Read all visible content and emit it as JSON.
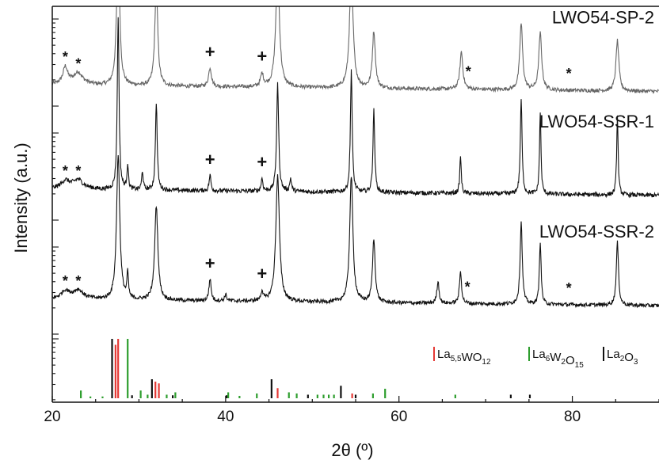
{
  "chart_data": {
    "type": "line",
    "xlabel": "2θ (º)",
    "ylabel": "Intensity (a.u.)",
    "xlim": [
      20,
      90
    ],
    "x_ticks": [
      20,
      40,
      60,
      80
    ],
    "x_tick_labels": [
      "20",
      "40",
      "60",
      "80"
    ],
    "y_tick_labels_shown": false,
    "grid": false,
    "series": [
      {
        "name": "LWO54-SP-2",
        "color": "#666666",
        "baseline": 0.78,
        "noise": 0.012,
        "peaks": [
          {
            "x": 21.5,
            "h": 0.05,
            "w": 0.3
          },
          {
            "x": 23.0,
            "h": 0.03,
            "w": 0.5
          },
          {
            "x": 27.6,
            "h": 0.47,
            "w": 0.2
          },
          {
            "x": 32.0,
            "h": 0.32,
            "w": 0.2
          },
          {
            "x": 38.2,
            "h": 0.06,
            "w": 0.2
          },
          {
            "x": 44.2,
            "h": 0.04,
            "w": 0.2
          },
          {
            "x": 46.0,
            "h": 0.38,
            "w": 0.25
          },
          {
            "x": 54.5,
            "h": 0.36,
            "w": 0.25
          },
          {
            "x": 57.1,
            "h": 0.18,
            "w": 0.2
          },
          {
            "x": 67.2,
            "h": 0.12,
            "w": 0.2
          },
          {
            "x": 74.1,
            "h": 0.21,
            "w": 0.2
          },
          {
            "x": 76.3,
            "h": 0.18,
            "w": 0.2
          },
          {
            "x": 85.2,
            "h": 0.16,
            "w": 0.2
          }
        ],
        "markers": [
          {
            "x": 21.5,
            "label": "*"
          },
          {
            "x": 23.0,
            "label": "*"
          },
          {
            "x": 38.2,
            "label": "+"
          },
          {
            "x": 44.2,
            "label": "+"
          },
          {
            "x": 68.0,
            "label": "*"
          },
          {
            "x": 79.6,
            "label": "*"
          }
        ]
      },
      {
        "name": "LWO54-SSR-1",
        "color": "#111111",
        "baseline": 0.45,
        "noise": 0.014,
        "peaks": [
          {
            "x": 21.5,
            "h": 0.02,
            "w": 0.5
          },
          {
            "x": 23.0,
            "h": 0.02,
            "w": 0.5
          },
          {
            "x": 27.6,
            "h": 0.55,
            "w": 0.12
          },
          {
            "x": 28.7,
            "h": 0.08,
            "w": 0.1
          },
          {
            "x": 30.4,
            "h": 0.06,
            "w": 0.1
          },
          {
            "x": 32.0,
            "h": 0.28,
            "w": 0.12
          },
          {
            "x": 38.2,
            "h": 0.05,
            "w": 0.12
          },
          {
            "x": 44.2,
            "h": 0.04,
            "w": 0.12
          },
          {
            "x": 46.0,
            "h": 0.34,
            "w": 0.14
          },
          {
            "x": 47.5,
            "h": 0.04,
            "w": 0.12
          },
          {
            "x": 54.5,
            "h": 0.39,
            "w": 0.12
          },
          {
            "x": 57.1,
            "h": 0.26,
            "w": 0.12
          },
          {
            "x": 67.1,
            "h": 0.12,
            "w": 0.1
          },
          {
            "x": 74.1,
            "h": 0.3,
            "w": 0.12
          },
          {
            "x": 76.3,
            "h": 0.26,
            "w": 0.1
          },
          {
            "x": 85.2,
            "h": 0.25,
            "w": 0.1
          }
        ],
        "markers": [
          {
            "x": 21.5,
            "label": "*"
          },
          {
            "x": 23.0,
            "label": "*"
          },
          {
            "x": 38.2,
            "label": "+"
          },
          {
            "x": 44.2,
            "label": "+"
          }
        ]
      },
      {
        "name": "LWO54-SSR-2",
        "color": "#111111",
        "baseline": 0.1,
        "noise": 0.012,
        "peaks": [
          {
            "x": 21.5,
            "h": 0.02,
            "w": 0.5
          },
          {
            "x": 23.0,
            "h": 0.02,
            "w": 0.5
          },
          {
            "x": 27.6,
            "h": 0.46,
            "w": 0.22
          },
          {
            "x": 28.7,
            "h": 0.08,
            "w": 0.1
          },
          {
            "x": 32.0,
            "h": 0.3,
            "w": 0.22
          },
          {
            "x": 38.2,
            "h": 0.07,
            "w": 0.15
          },
          {
            "x": 40.0,
            "h": 0.02,
            "w": 0.15
          },
          {
            "x": 44.2,
            "h": 0.03,
            "w": 0.15
          },
          {
            "x": 46.0,
            "h": 0.4,
            "w": 0.25
          },
          {
            "x": 54.5,
            "h": 0.4,
            "w": 0.22
          },
          {
            "x": 57.1,
            "h": 0.2,
            "w": 0.18
          },
          {
            "x": 64.5,
            "h": 0.07,
            "w": 0.15
          },
          {
            "x": 67.1,
            "h": 0.1,
            "w": 0.15
          },
          {
            "x": 74.1,
            "h": 0.26,
            "w": 0.15
          },
          {
            "x": 76.3,
            "h": 0.2,
            "w": 0.12
          },
          {
            "x": 85.2,
            "h": 0.2,
            "w": 0.15
          }
        ],
        "markers": [
          {
            "x": 21.5,
            "label": "*"
          },
          {
            "x": 23.0,
            "label": "*"
          },
          {
            "x": 38.2,
            "label": "+"
          },
          {
            "x": 44.2,
            "label": "+"
          },
          {
            "x": 67.9,
            "label": "*"
          },
          {
            "x": 79.6,
            "label": "*"
          }
        ]
      }
    ],
    "reference_patterns": [
      {
        "name": "La5,5WO12",
        "legend_main": "La",
        "legend_parts": [
          [
            "La",
            ""
          ],
          [
            "5,5",
            "sub"
          ],
          [
            "WO",
            ""
          ],
          [
            "12",
            "sub"
          ]
        ],
        "color": "#e53935",
        "lines": [
          [
            27.6,
            1.0
          ],
          [
            27.3,
            0.9
          ],
          [
            31.9,
            0.28
          ],
          [
            32.3,
            0.25
          ],
          [
            46.0,
            0.17
          ],
          [
            54.6,
            0.08
          ]
        ]
      },
      {
        "name": "La6W2O15",
        "legend_parts": [
          [
            "La",
            ""
          ],
          [
            "6",
            "sub"
          ],
          [
            "W",
            ""
          ],
          [
            "2",
            "sub"
          ],
          [
            "O",
            ""
          ],
          [
            "15",
            "sub"
          ]
        ],
        "color": "#2e9e2e",
        "lines": [
          [
            23.3,
            0.13
          ],
          [
            24.4,
            0.03
          ],
          [
            25.8,
            0.03
          ],
          [
            28.7,
            1.0
          ],
          [
            30.2,
            0.13
          ],
          [
            31.0,
            0.06
          ],
          [
            33.2,
            0.06
          ],
          [
            34.2,
            0.1
          ],
          [
            40.3,
            0.1
          ],
          [
            41.6,
            0.04
          ],
          [
            43.6,
            0.08
          ],
          [
            47.3,
            0.1
          ],
          [
            48.2,
            0.08
          ],
          [
            50.6,
            0.06
          ],
          [
            51.3,
            0.06
          ],
          [
            51.9,
            0.06
          ],
          [
            52.5,
            0.06
          ],
          [
            57.0,
            0.08
          ],
          [
            58.4,
            0.16
          ],
          [
            66.5,
            0.06
          ]
        ]
      },
      {
        "name": "La2O3",
        "legend_parts": [
          [
            "La",
            ""
          ],
          [
            "2",
            "sub"
          ],
          [
            "O",
            ""
          ],
          [
            "3",
            "sub"
          ]
        ],
        "color": "#111111",
        "lines": [
          [
            26.9,
            1.0
          ],
          [
            29.2,
            0.05
          ],
          [
            31.5,
            0.32
          ],
          [
            33.9,
            0.05
          ],
          [
            40.1,
            0.05
          ],
          [
            45.3,
            0.32
          ],
          [
            49.5,
            0.06
          ],
          [
            53.3,
            0.21
          ],
          [
            55.0,
            0.06
          ],
          [
            72.9,
            0.06
          ],
          [
            75.1,
            0.06
          ]
        ]
      }
    ]
  }
}
